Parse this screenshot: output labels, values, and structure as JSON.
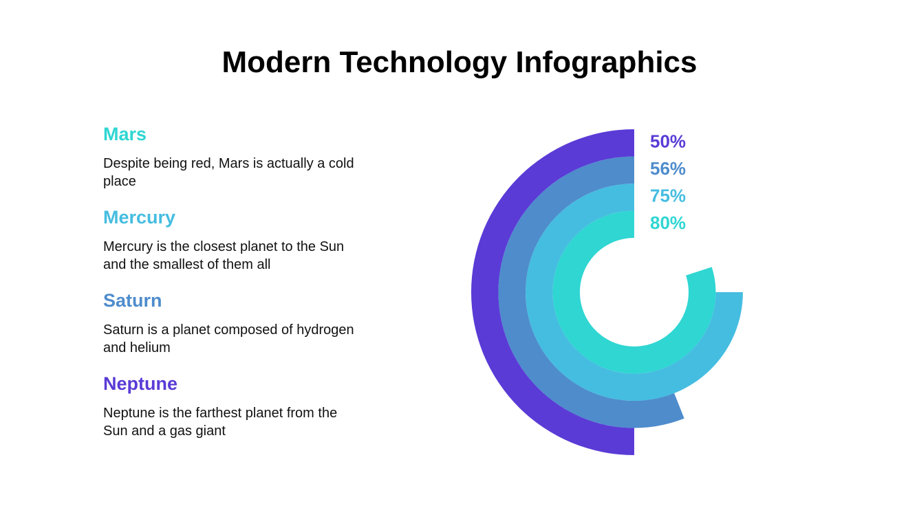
{
  "chart_data": {
    "type": "radial_bar",
    "title": "Modern Technology Infographics",
    "categories": [
      "Mars",
      "Mercury",
      "Saturn",
      "Neptune"
    ],
    "descriptions": [
      "Despite being red, Mars is actually a cold place",
      "Mercury is the closest planet to the Sun and the smallest of them all",
      "Saturn is a planet composed of hydrogen and helium",
      "Neptune is the farthest planet from the Sun and a gas giant"
    ],
    "values": [
      80,
      75,
      56,
      50
    ],
    "value_labels": [
      "80%",
      "75%",
      "56%",
      "50%"
    ],
    "colors": [
      "#2fd6d2",
      "#45bde0",
      "#4e8ccc",
      "#5a3bd6"
    ]
  }
}
